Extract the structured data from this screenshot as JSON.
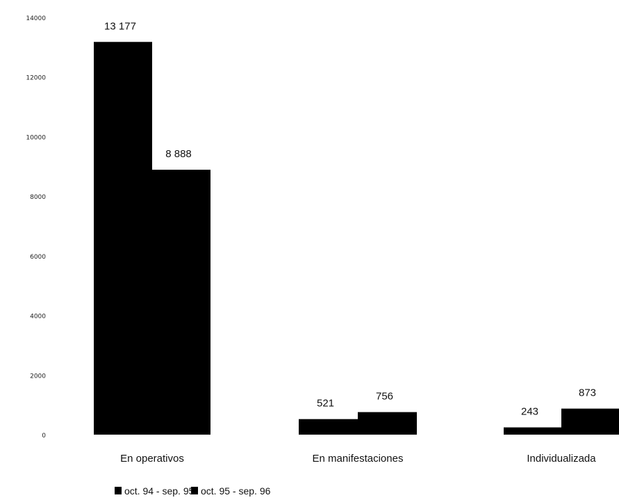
{
  "chart_data": {
    "type": "bar",
    "title": "",
    "xlabel": "",
    "ylabel": "",
    "ylim": [
      0,
      14000
    ],
    "yticks": [
      "14000",
      "12000",
      "10000",
      "8000",
      "6000",
      "4000",
      "2000",
      "0"
    ],
    "categories": [
      "En operativos",
      "En manifestaciones",
      "Individualizada"
    ],
    "series": [
      {
        "name": "oct. 94 - sep. 95",
        "values": [
          13177,
          521,
          243
        ],
        "labels": [
          "13 177",
          "521",
          "243"
        ],
        "color": "#000000"
      },
      {
        "name": "oct. 95 - sep. 96",
        "values": [
          8888,
          756,
          873
        ],
        "labels": [
          "8 888",
          "756",
          "873"
        ],
        "color": "#000000"
      }
    ],
    "grid": false,
    "legend": "bottom"
  }
}
